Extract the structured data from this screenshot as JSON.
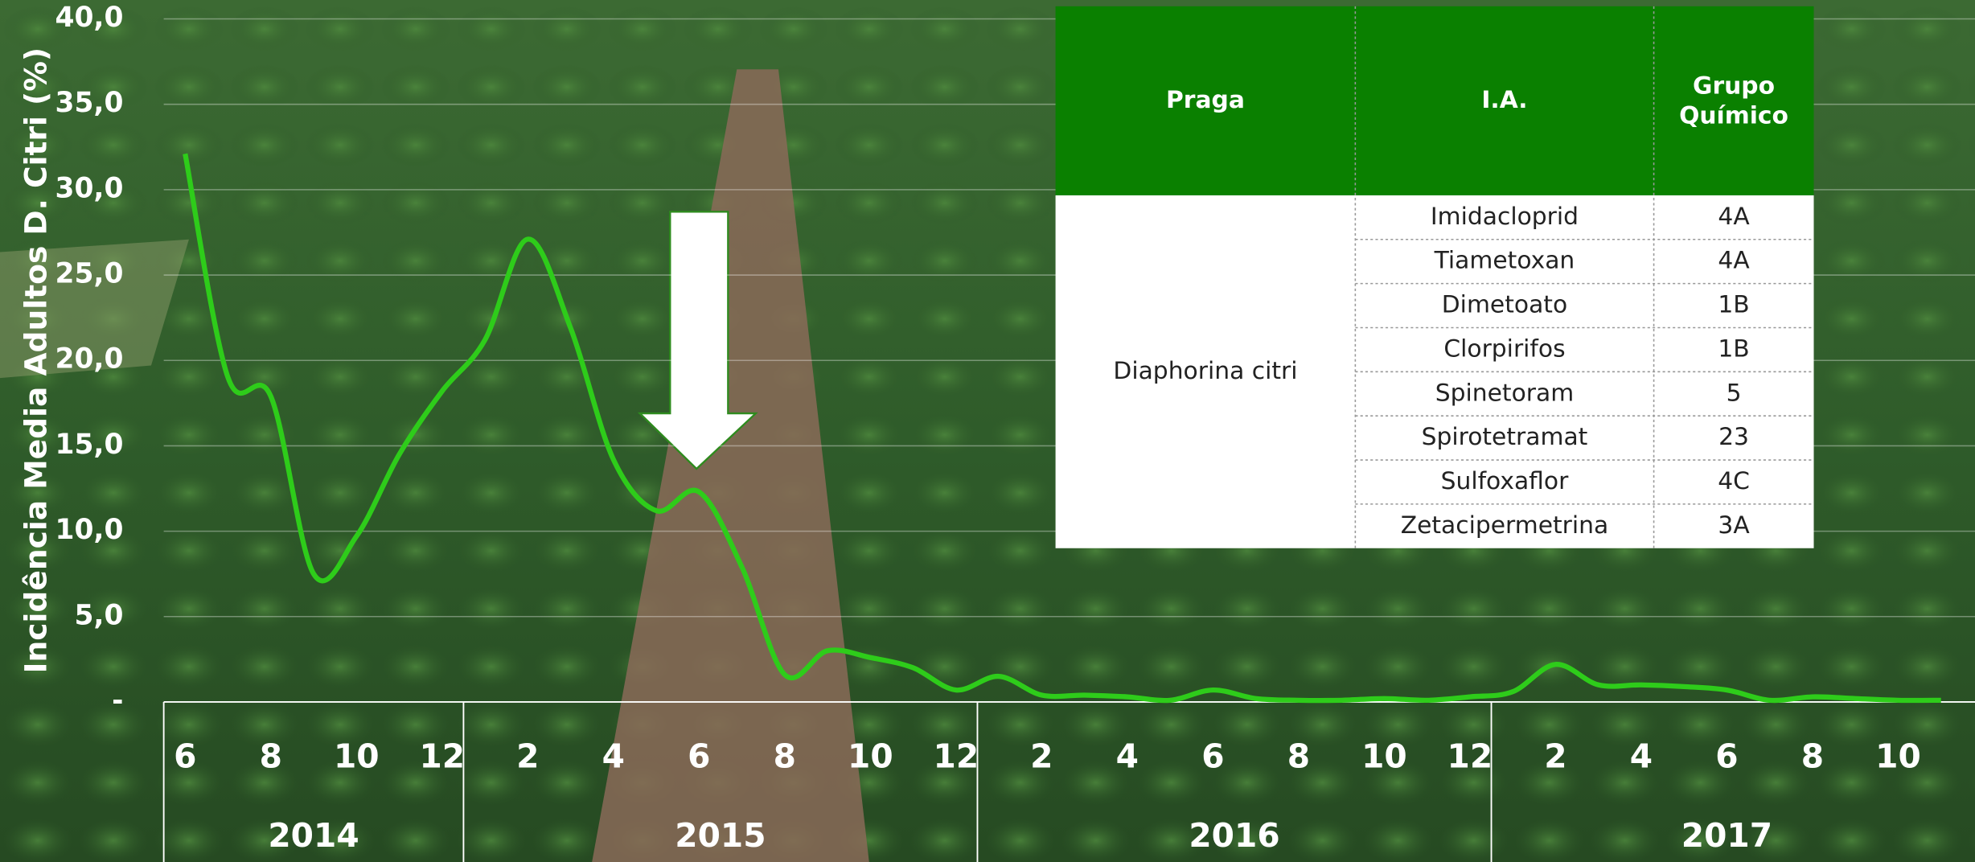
{
  "chart_data": {
    "type": "line",
    "y_label": "Incidência Media Adultos D. Citri (%)",
    "categories": [
      6,
      null,
      8,
      null,
      10,
      null,
      12,
      null,
      2,
      null,
      4,
      null,
      6,
      null,
      8,
      null,
      10,
      null,
      12,
      null,
      2,
      null,
      4,
      null,
      6,
      null,
      8,
      null,
      10,
      null,
      12,
      null,
      2,
      null,
      4,
      null,
      6,
      null,
      8,
      null,
      10,
      null
    ],
    "years": [
      "2014",
      "2015",
      "2016",
      "2017"
    ],
    "series": [
      {
        "color": "#2ecc1a",
        "values": [
          32.1,
          19.0,
          17.9,
          7.5,
          9.7,
          14.5,
          18.2,
          21.2,
          27.1,
          21.9,
          14.2,
          11.2,
          12.3,
          7.9,
          1.6,
          3.0,
          2.6,
          2.0,
          0.7,
          1.5,
          0.4,
          0.4,
          0.3,
          0.1,
          0.7,
          0.2,
          0.1,
          0.1,
          0.2,
          0.1,
          0.3,
          0.6,
          2.2,
          1.0,
          1.0,
          0.9,
          0.7,
          0.1,
          0.3,
          0.2,
          0.1,
          0.1
        ]
      }
    ],
    "ylim": [
      0,
      40
    ],
    "yticks": [
      {
        "value": 0,
        "label": "-"
      },
      {
        "value": 5,
        "label": "5,0"
      },
      {
        "value": 10,
        "label": "10,0"
      },
      {
        "value": 15,
        "label": "15,0"
      },
      {
        "value": 20,
        "label": "20,0"
      },
      {
        "value": 25,
        "label": "25,0"
      },
      {
        "value": 30,
        "label": "30,0"
      },
      {
        "value": 35,
        "label": "35,0"
      },
      {
        "value": 40,
        "label": "40,0"
      }
    ],
    "grid": true
  },
  "table": {
    "header": [
      "Praga",
      "I.A.",
      "Grupo Químico"
    ],
    "pest": "Diaphorina citri",
    "rows": [
      [
        "Imidacloprid",
        "4A"
      ],
      [
        "Tiametoxan",
        "4A"
      ],
      [
        "Dimetoato",
        "1B"
      ],
      [
        "Clorpirifos",
        "1B"
      ],
      [
        "Spinetoram",
        "5"
      ],
      [
        "Spirotetramat",
        "23"
      ],
      [
        "Sulfoxaflor",
        "4C"
      ],
      [
        "Zetacipermetrina",
        "3A"
      ]
    ]
  }
}
